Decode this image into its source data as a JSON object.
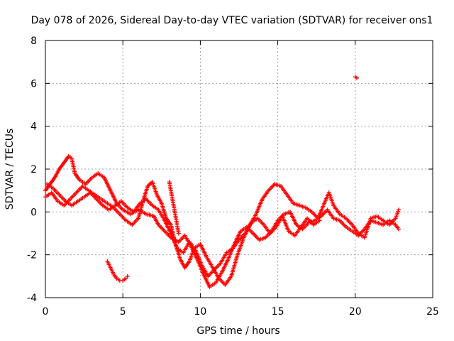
{
  "chart_data": {
    "type": "scatter",
    "title": "Day 078 of 2026, Sidereal Day-to-day VTEC variation (SDTVAR) for receiver ons1",
    "xlabel": "GPS time / hours",
    "ylabel": "SDTVAR / TECUs",
    "xlim": [
      0,
      25
    ],
    "ylim": [
      -4,
      8
    ],
    "xticks": [
      0,
      5,
      10,
      15,
      20,
      25
    ],
    "yticks": [
      -4,
      -2,
      0,
      2,
      4,
      6,
      8
    ],
    "grid": true,
    "marker": "+",
    "color": "#ff0000",
    "series": [
      {
        "name": "track-a",
        "points": [
          [
            0.0,
            1.0
          ],
          [
            0.3,
            1.3
          ],
          [
            0.6,
            1.6
          ],
          [
            0.9,
            2.0
          ],
          [
            1.2,
            2.3
          ],
          [
            1.5,
            2.6
          ],
          [
            1.7,
            2.5
          ],
          [
            1.9,
            1.8
          ],
          [
            2.2,
            1.5
          ],
          [
            2.6,
            1.3
          ],
          [
            3.0,
            1.6
          ],
          [
            3.4,
            1.8
          ],
          [
            3.8,
            1.6
          ],
          [
            4.2,
            1.0
          ],
          [
            4.6,
            0.4
          ],
          [
            5.0,
            0.1
          ],
          [
            5.5,
            -0.1
          ],
          [
            6.0,
            0.1
          ],
          [
            6.5,
            -0.1
          ],
          [
            7.0,
            -0.2
          ],
          [
            7.3,
            -0.6
          ],
          [
            7.7,
            -0.9
          ],
          [
            8.1,
            -1.2
          ],
          [
            8.6,
            -1.4
          ],
          [
            9.0,
            -1.1
          ],
          [
            9.4,
            -1.6
          ],
          [
            9.8,
            -2.2
          ],
          [
            10.2,
            -2.9
          ],
          [
            10.6,
            -3.5
          ],
          [
            11.0,
            -3.3
          ],
          [
            11.4,
            -2.8
          ],
          [
            11.8,
            -2.2
          ],
          [
            12.2,
            -1.5
          ],
          [
            12.6,
            -0.9
          ],
          [
            13.0,
            -0.7
          ],
          [
            13.4,
            -1.0
          ],
          [
            13.8,
            -1.3
          ],
          [
            14.2,
            -1.2
          ],
          [
            14.6,
            -0.9
          ],
          [
            15.0,
            -0.4
          ],
          [
            15.4,
            -0.1
          ],
          [
            15.8,
            0.0
          ],
          [
            16.2,
            -0.6
          ],
          [
            16.6,
            -0.8
          ],
          [
            17.0,
            -0.5
          ],
          [
            17.4,
            -0.4
          ],
          [
            17.8,
            -0.2
          ],
          [
            18.2,
            0.1
          ],
          [
            18.6,
            -0.3
          ],
          [
            19.0,
            -0.4
          ],
          [
            19.4,
            -0.7
          ],
          [
            19.8,
            -0.9
          ],
          [
            20.2,
            -1.1
          ],
          [
            20.6,
            -0.8
          ],
          [
            21.0,
            -0.4
          ],
          [
            21.4,
            -0.5
          ],
          [
            21.8,
            -0.6
          ],
          [
            22.2,
            -0.4
          ],
          [
            22.6,
            -0.6
          ],
          [
            22.8,
            -0.8
          ]
        ]
      },
      {
        "name": "track-b",
        "points": [
          [
            0.0,
            0.7
          ],
          [
            0.4,
            0.9
          ],
          [
            0.8,
            0.5
          ],
          [
            1.2,
            0.3
          ],
          [
            1.6,
            0.6
          ],
          [
            2.0,
            0.9
          ],
          [
            2.4,
            1.2
          ],
          [
            2.8,
            1.0
          ],
          [
            3.2,
            0.8
          ],
          [
            3.6,
            0.6
          ],
          [
            4.0,
            0.4
          ],
          [
            4.4,
            0.2
          ],
          [
            4.8,
            -0.1
          ],
          [
            5.2,
            -0.4
          ],
          [
            5.6,
            -0.6
          ],
          [
            6.0,
            -0.3
          ],
          [
            6.3,
            0.5
          ],
          [
            6.6,
            1.2
          ],
          [
            6.9,
            1.4
          ],
          [
            7.2,
            0.8
          ],
          [
            7.5,
            0.4
          ],
          [
            7.8,
            -0.3
          ],
          [
            8.1,
            -0.6
          ],
          [
            8.4,
            -1.5
          ],
          [
            8.7,
            -2.2
          ],
          [
            9.0,
            -2.6
          ],
          [
            9.3,
            -2.3
          ],
          [
            9.6,
            -1.7
          ],
          [
            10.0,
            -1.5
          ],
          [
            10.4,
            -2.1
          ],
          [
            10.8,
            -2.6
          ],
          [
            11.2,
            -3.1
          ],
          [
            11.6,
            -3.4
          ],
          [
            12.0,
            -3.0
          ],
          [
            12.4,
            -2.0
          ],
          [
            12.8,
            -1.2
          ],
          [
            13.2,
            -0.6
          ],
          [
            13.6,
            -0.1
          ],
          [
            14.0,
            0.6
          ],
          [
            14.4,
            1.0
          ],
          [
            14.8,
            1.3
          ],
          [
            15.2,
            1.2
          ],
          [
            15.6,
            0.8
          ],
          [
            16.0,
            0.4
          ],
          [
            16.4,
            0.3
          ],
          [
            16.8,
            0.2
          ],
          [
            17.2,
            0.0
          ],
          [
            17.6,
            -0.3
          ],
          [
            18.0,
            0.4
          ],
          [
            18.3,
            0.9
          ],
          [
            18.6,
            0.3
          ],
          [
            19.0,
            -0.1
          ],
          [
            19.4,
            -0.3
          ],
          [
            19.8,
            -0.6
          ],
          [
            20.2,
            -1.0
          ],
          [
            20.6,
            -1.2
          ],
          [
            21.0,
            -0.3
          ],
          [
            21.4,
            -0.2
          ],
          [
            21.8,
            -0.4
          ],
          [
            22.2,
            -0.6
          ],
          [
            22.6,
            -0.3
          ],
          [
            22.8,
            0.1
          ]
        ]
      },
      {
        "name": "track-c",
        "points": [
          [
            0.1,
            1.3
          ],
          [
            0.5,
            1.1
          ],
          [
            0.9,
            0.8
          ],
          [
            1.3,
            0.5
          ],
          [
            1.7,
            0.3
          ],
          [
            2.1,
            0.5
          ],
          [
            2.5,
            0.7
          ],
          [
            2.9,
            0.9
          ],
          [
            3.3,
            0.6
          ],
          [
            3.7,
            0.3
          ],
          [
            4.1,
            0.1
          ],
          [
            4.5,
            0.3
          ],
          [
            4.9,
            0.5
          ],
          [
            5.3,
            0.2
          ],
          [
            5.7,
            0.0
          ],
          [
            6.1,
            0.4
          ],
          [
            6.5,
            0.6
          ],
          [
            6.9,
            0.3
          ],
          [
            7.3,
            0.1
          ],
          [
            7.7,
            -0.4
          ],
          [
            8.1,
            -1.0
          ],
          [
            8.5,
            -1.7
          ],
          [
            8.9,
            -1.9
          ],
          [
            9.3,
            -1.4
          ],
          [
            9.7,
            -1.8
          ],
          [
            10.1,
            -2.5
          ],
          [
            10.5,
            -3.0
          ],
          [
            10.9,
            -2.7
          ],
          [
            11.3,
            -2.4
          ],
          [
            11.7,
            -1.9
          ],
          [
            12.1,
            -1.7
          ],
          [
            12.5,
            -1.3
          ],
          [
            12.9,
            -1.0
          ],
          [
            13.3,
            -0.5
          ],
          [
            13.7,
            -0.3
          ],
          [
            14.1,
            -0.6
          ],
          [
            14.5,
            -1.0
          ],
          [
            14.9,
            -0.7
          ],
          [
            15.3,
            -0.2
          ],
          [
            15.7,
            -0.9
          ],
          [
            16.1,
            -1.1
          ],
          [
            16.5,
            -0.7
          ],
          [
            16.9,
            -0.3
          ],
          [
            17.3,
            -0.6
          ],
          [
            17.7,
            -0.4
          ]
        ]
      },
      {
        "name": "track-d",
        "points": [
          [
            4.0,
            -2.3
          ],
          [
            4.2,
            -2.6
          ],
          [
            4.4,
            -2.9
          ],
          [
            4.6,
            -3.1
          ],
          [
            4.8,
            -3.2
          ],
          [
            5.0,
            -3.2
          ],
          [
            5.2,
            -3.1
          ],
          [
            5.3,
            -3.0
          ]
        ]
      },
      {
        "name": "track-e",
        "points": [
          [
            8.0,
            1.4
          ],
          [
            8.1,
            1.0
          ],
          [
            8.2,
            0.6
          ],
          [
            8.3,
            0.2
          ],
          [
            8.4,
            -0.2
          ],
          [
            8.5,
            -0.6
          ],
          [
            8.6,
            -1.0
          ]
        ]
      },
      {
        "name": "track-f",
        "points": [
          [
            20.0,
            6.3
          ],
          [
            20.1,
            6.25
          ]
        ]
      }
    ]
  }
}
